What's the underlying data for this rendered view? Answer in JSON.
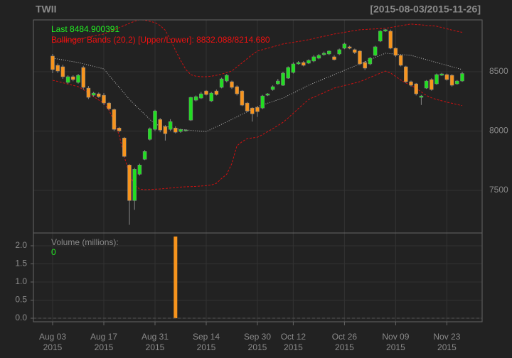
{
  "chart_data": {
    "type": "candlestick",
    "title": "TWII",
    "date_range": "[2015-08-03/2015-11-26]",
    "last_label": "Last 8484.900391",
    "bb_label": "Bollinger Bands (20,2) [Upper/Lower]: 8832.088/8214.680",
    "x": [
      "2015-08-03",
      "2015-08-04",
      "2015-08-05",
      "2015-08-06",
      "2015-08-07",
      "2015-08-10",
      "2015-08-11",
      "2015-08-12",
      "2015-08-13",
      "2015-08-14",
      "2015-08-17",
      "2015-08-18",
      "2015-08-19",
      "2015-08-20",
      "2015-08-21",
      "2015-08-24",
      "2015-08-25",
      "2015-08-26",
      "2015-08-27",
      "2015-08-28",
      "2015-08-31",
      "2015-09-01",
      "2015-09-02",
      "2015-09-03",
      "2015-09-04",
      "2015-09-07",
      "2015-09-08",
      "2015-09-09",
      "2015-09-10",
      "2015-09-11",
      "2015-09-14",
      "2015-09-15",
      "2015-09-16",
      "2015-09-17",
      "2015-09-18",
      "2015-09-21",
      "2015-09-22",
      "2015-09-23",
      "2015-09-24",
      "2015-09-25",
      "2015-09-30",
      "2015-10-01",
      "2015-10-02",
      "2015-10-05",
      "2015-10-06",
      "2015-10-07",
      "2015-10-08",
      "2015-10-12",
      "2015-10-13",
      "2015-10-14",
      "2015-10-15",
      "2015-10-16",
      "2015-10-19",
      "2015-10-20",
      "2015-10-21",
      "2015-10-22",
      "2015-10-23",
      "2015-10-26",
      "2015-10-27",
      "2015-10-28",
      "2015-10-29",
      "2015-10-30",
      "2015-11-02",
      "2015-11-03",
      "2015-11-04",
      "2015-11-05",
      "2015-11-06",
      "2015-11-09",
      "2015-11-10",
      "2015-11-11",
      "2015-11-12",
      "2015-11-13",
      "2015-11-16",
      "2015-11-17",
      "2015-11-18",
      "2015-11-19",
      "2015-11-20",
      "2015-11-23",
      "2015-11-24",
      "2015-11-25",
      "2015-11-26"
    ],
    "open": [
      8632,
      8554,
      8542,
      8410,
      8458,
      8410,
      8536,
      8362,
      8302,
      8314,
      8302,
      8236,
      8182,
      8026,
      7942,
      7714,
      7414,
      7636,
      7762,
      7930,
      8014,
      8098,
      8038,
      8014,
      8026,
      7996,
      8002,
      8092,
      8260,
      8278,
      8338,
      8254,
      8338,
      8368,
      8422,
      8416,
      8374,
      8338,
      8236,
      8194,
      8200,
      8194,
      8302,
      8350,
      8398,
      8386,
      8446,
      8494,
      8566,
      8578,
      8572,
      8590,
      8614,
      8644,
      8650,
      8626,
      8650,
      8698,
      8710,
      8686,
      8674,
      8578,
      8566,
      8638,
      8758,
      8842,
      8842,
      8698,
      8638,
      8542,
      8416,
      8398,
      8284,
      8362,
      8434,
      8398,
      8470,
      8476,
      8470,
      8398,
      8422
    ],
    "high": [
      8650,
      8570,
      8560,
      8470,
      8470,
      8482,
      8550,
      8380,
      8330,
      8325,
      8320,
      8245,
      8190,
      8035,
      7950,
      7720,
      7690,
      7725,
      7840,
      8030,
      8180,
      8110,
      8050,
      8100,
      8040,
      8020,
      8015,
      8290,
      8300,
      8330,
      8345,
      8330,
      8350,
      8450,
      8480,
      8425,
      8385,
      8345,
      8245,
      8200,
      8210,
      8305,
      8320,
      8385,
      8440,
      8500,
      8545,
      8580,
      8590,
      8590,
      8605,
      8640,
      8650,
      8670,
      8680,
      8640,
      8695,
      8745,
      8720,
      8695,
      8680,
      8590,
      8625,
      8720,
      8850,
      8860,
      8855,
      8705,
      8645,
      8550,
      8425,
      8405,
      8305,
      8430,
      8445,
      8485,
      8490,
      8485,
      8480,
      8430,
      8500
    ],
    "low": [
      8488,
      8490,
      8440,
      8398,
      8420,
      8400,
      8350,
      8270,
      8290,
      8280,
      8220,
      8175,
      8000,
      7990,
      7780,
      7210,
      7336,
      7625,
      7755,
      7920,
      8000,
      7990,
      7920,
      8000,
      7980,
      7985,
      7995,
      8085,
      8250,
      8270,
      8300,
      8245,
      8300,
      8360,
      8410,
      8355,
      8300,
      8210,
      8160,
      8080,
      8120,
      8185,
      8295,
      8340,
      8390,
      8380,
      8440,
      8485,
      8560,
      8545,
      8565,
      8580,
      8605,
      8635,
      8640,
      8595,
      8640,
      8690,
      8690,
      8650,
      8555,
      8515,
      8555,
      8630,
      8750,
      8835,
      8690,
      8625,
      8545,
      8405,
      8375,
      8300,
      8220,
      8355,
      8340,
      8390,
      8465,
      8425,
      8375,
      8390,
      8415
    ],
    "close": [
      8518,
      8506,
      8458,
      8458,
      8434,
      8470,
      8368,
      8284,
      8320,
      8290,
      8236,
      8188,
      8014,
      8002,
      7786,
      7414,
      7678,
      7714,
      7828,
      8020,
      8170,
      8008,
      7978,
      8080,
      7990,
      8014,
      8008,
      8284,
      8290,
      8314,
      8308,
      8320,
      8308,
      8440,
      8470,
      8368,
      8314,
      8218,
      8170,
      8146,
      8164,
      8296,
      8314,
      8374,
      8422,
      8488,
      8536,
      8566,
      8578,
      8554,
      8596,
      8626,
      8638,
      8656,
      8674,
      8602,
      8686,
      8734,
      8698,
      8662,
      8566,
      8530,
      8614,
      8710,
      8842,
      8854,
      8698,
      8638,
      8554,
      8416,
      8386,
      8314,
      8296,
      8422,
      8350,
      8476,
      8482,
      8434,
      8386,
      8422,
      8484.900391
    ],
    "up_color": "#22dd22",
    "down_color": "#f7941d",
    "bb_upper": [
      8746,
      8752,
      8758,
      8764,
      8770,
      8776,
      8784,
      8793,
      8801,
      8810,
      8818,
      8836,
      8854,
      8872,
      8890,
      8908,
      8925,
      8938,
      8935,
      8925,
      8914,
      8890,
      8850,
      8770,
      8680,
      8596,
      8520,
      8475,
      8462,
      8458,
      8458,
      8462,
      8470,
      8480,
      8492,
      8506,
      8540,
      8575,
      8610,
      8645,
      8674,
      8686,
      8698,
      8710,
      8722,
      8734,
      8741,
      8748,
      8755,
      8762,
      8770,
      8780,
      8790,
      8799,
      8808,
      8818,
      8825,
      8832,
      8840,
      8847,
      8854,
      8856,
      8859,
      8861,
      8864,
      8866,
      8873,
      8880,
      8888,
      8895,
      8902,
      8898,
      8895,
      8891,
      8888,
      8884,
      8873,
      8862,
      8851,
      8841,
      8832.088
    ],
    "bb_middle": [
      8614,
      8607,
      8600,
      8592,
      8585,
      8578,
      8567,
      8556,
      8546,
      8535,
      8524,
      8472,
      8420,
      8370,
      8318,
      8266,
      8224,
      8182,
      8140,
      8098,
      8056,
      8048,
      8040,
      8030,
      8022,
      8014,
      8010,
      8006,
      8002,
      7999,
      7996,
      8016,
      8036,
      8057,
      8078,
      8098,
      8120,
      8142,
      8163,
      8185,
      8206,
      8220,
      8235,
      8249,
      8264,
      8278,
      8300,
      8321,
      8343,
      8364,
      8386,
      8404,
      8422,
      8440,
      8458,
      8476,
      8494,
      8512,
      8530,
      8548,
      8566,
      8584,
      8602,
      8620,
      8638,
      8656,
      8652,
      8649,
      8645,
      8642,
      8638,
      8626,
      8614,
      8602,
      8590,
      8578,
      8566,
      8554,
      8542,
      8530,
      8518
    ],
    "bb_lower": [
      8428,
      8418,
      8407,
      8396,
      8385,
      8374,
      8350,
      8320,
      8290,
      8262,
      8236,
      8176,
      8086,
      7966,
      7786,
      7636,
      7546,
      7510,
      7506,
      7508,
      7510,
      7512,
      7516,
      7520,
      7524,
      7528,
      7530,
      7532,
      7534,
      7537,
      7540,
      7545,
      7560,
      7600,
      7636,
      7726,
      7876,
      7910,
      7936,
      7942,
      7948,
      7970,
      7995,
      8020,
      8047,
      8074,
      8110,
      8150,
      8190,
      8228,
      8266,
      8286,
      8305,
      8324,
      8343,
      8362,
      8373,
      8384,
      8394,
      8405,
      8416,
      8434,
      8452,
      8470,
      8488,
      8506,
      8490,
      8460,
      8430,
      8405,
      8386,
      8360,
      8330,
      8300,
      8280,
      8266,
      8255,
      8244,
      8234,
      8224,
      8214.68
    ],
    "band_color": "#cc1111",
    "middle_color": "#bbbbbb",
    "ylim": [
      7141,
      8937
    ],
    "yticks": [
      7500,
      8000,
      8500
    ],
    "xticks": [
      {
        "value": "2015-08-03",
        "label": [
          "Aug 03",
          "2015"
        ]
      },
      {
        "value": "2015-08-17",
        "label": [
          "Aug 17",
          "2015"
        ]
      },
      {
        "value": "2015-08-31",
        "label": [
          "Aug 31",
          "2015"
        ]
      },
      {
        "value": "2015-09-14",
        "label": [
          "Sep 14",
          "2015"
        ]
      },
      {
        "value": "2015-09-30",
        "label": [
          "Sep 30",
          "2015"
        ]
      },
      {
        "value": "2015-10-12",
        "label": [
          "Oct 12",
          "2015"
        ]
      },
      {
        "value": "2015-10-26",
        "label": [
          "Oct 26",
          "2015"
        ]
      },
      {
        "value": "2015-11-09",
        "label": [
          "Nov 09",
          "2015"
        ]
      },
      {
        "value": "2015-11-23",
        "label": [
          "Nov 23",
          "2015"
        ]
      }
    ],
    "grid": true,
    "volume": {
      "label": "Volume (millions):",
      "values": [
        0,
        0,
        0,
        0,
        0,
        0,
        0,
        0,
        0,
        0,
        0,
        0,
        0,
        0,
        0,
        0,
        0,
        0,
        0,
        0,
        0,
        0,
        0,
        0,
        2.255,
        0,
        0,
        0,
        0,
        0,
        0,
        0,
        0,
        0,
        0,
        0,
        0,
        0,
        0,
        0,
        0,
        0,
        0,
        0,
        0,
        0,
        0,
        0,
        0,
        0,
        0,
        0,
        0,
        0,
        0,
        0,
        0,
        0,
        0,
        0,
        0,
        0,
        0,
        0,
        0,
        0,
        0,
        0,
        0,
        0,
        0,
        0,
        0,
        0,
        0,
        0,
        0,
        0,
        0,
        0,
        0
      ],
      "ylim": [
        -0.098,
        2.353
      ],
      "yticks": [
        {
          "value": 0,
          "label": "0.0"
        },
        0.5,
        {
          "value": 1,
          "label": "1.0"
        },
        1.5,
        {
          "value": 2,
          "label": "2.0"
        }
      ]
    }
  }
}
